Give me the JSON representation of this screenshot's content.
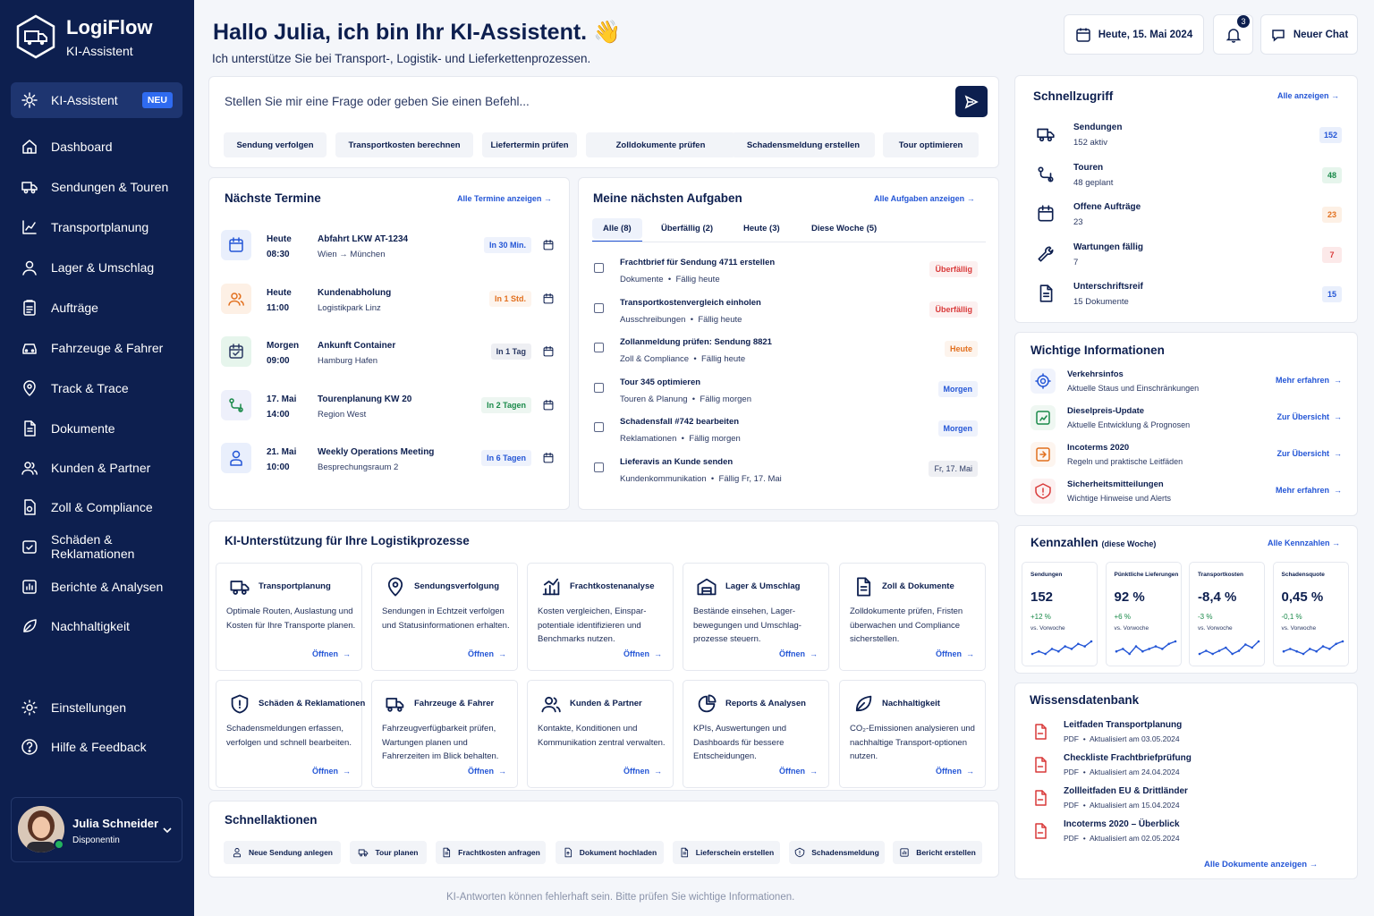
{
  "app": {
    "name": "LogiFlow",
    "subtitle": "KI-Assistent"
  },
  "nav": {
    "items": [
      {
        "label": "KI-Assistent",
        "badge": "NEU",
        "icon": "gear-spark-icon"
      },
      {
        "label": "Dashboard",
        "icon": "home-icon"
      },
      {
        "label": "Sendungen & Touren",
        "icon": "truck-route-icon"
      },
      {
        "label": "Transportplanung",
        "icon": "planning-icon"
      },
      {
        "label": "Lager & Umschlag",
        "icon": "warehouse-user-icon"
      },
      {
        "label": "Aufträge",
        "icon": "clipboard-icon"
      },
      {
        "label": "Fahrzeuge & Fahrer",
        "icon": "vehicle-icon"
      },
      {
        "label": "Track & Trace",
        "icon": "location-icon"
      },
      {
        "label": "Dokumente",
        "icon": "document-icon"
      },
      {
        "label": "Kunden & Partner",
        "icon": "users-icon"
      },
      {
        "label": "Zoll & Compliance",
        "icon": "customs-icon"
      },
      {
        "label": "Schäden & Reklamationen",
        "icon": "damage-icon"
      },
      {
        "label": "Berichte & Analysen",
        "icon": "report-icon"
      },
      {
        "label": "Nachhaltigkeit",
        "icon": "leaf-icon"
      }
    ],
    "settings": "Einstellungen",
    "help": "Hilfe & Feedback"
  },
  "user": {
    "name": "Julia Schneider",
    "role": "Disponentin"
  },
  "header": {
    "greeting": "Hallo Julia, ich bin Ihr KI-Assistent. 👋",
    "subtitle": "Ich unterstütze Sie bei Transport-, Logistik- und Lieferkettenprozessen.",
    "date": "Heute, 15. Mai 2024",
    "notifications": "3",
    "new_chat": "Neuer Chat"
  },
  "prompt": {
    "placeholder": "Stellen Sie mir eine Frage oder geben Sie einen Befehl...",
    "chips": [
      "Sendung verfolgen",
      "Transportkosten berechnen",
      "Liefertermin prüfen",
      "Zolldokumente prüfen",
      "Schadensmeldung erstellen",
      "Tour optimieren"
    ]
  },
  "termine": {
    "title": "Nächste Termine",
    "link": "Alle Termine anzeigen",
    "items": [
      {
        "day": "Heute",
        "time": "08:30",
        "title": "Abfahrt LKW AT-1234",
        "sub": "Wien → München",
        "pill": "In 30 Min.",
        "color": "#2456d6"
      },
      {
        "day": "Heute",
        "time": "11:00",
        "title": "Kundenabholung",
        "sub": "Logistikpark Linz",
        "pill": "In 1 Std.",
        "color": "#e2701f"
      },
      {
        "day": "Morgen",
        "time": "09:00",
        "title": "Ankunft Container",
        "sub": "Hamburg Hafen",
        "pill": "In 1 Tag",
        "color": "#2b3963"
      },
      {
        "day": "17. Mai",
        "time": "14:00",
        "title": "Tourenplanung KW 20",
        "sub": "Region West",
        "pill": "In 2 Tagen",
        "color": "#1a8a4a"
      },
      {
        "day": "21. Mai",
        "time": "10:00",
        "title": "Weekly Operations Meeting",
        "sub": "Besprechungsraum 2",
        "pill": "In 6 Tagen",
        "color": "#2456d6"
      }
    ]
  },
  "aufgaben": {
    "title": "Meine nächsten Aufgaben",
    "link": "Alle Aufgaben anzeigen",
    "tabs": [
      "Alle (8)",
      "Überfällig (2)",
      "Heute (3)",
      "Diese Woche (5)"
    ],
    "items": [
      {
        "title": "Frachtbrief für Sendung 4711 erstellen",
        "cat": "Dokumente",
        "due": "Fällig heute",
        "status": "Überfällig",
        "color": "#d93a3a"
      },
      {
        "title": "Transportkostenvergleich einholen",
        "cat": "Ausschreibungen",
        "due": "Fällig heute",
        "status": "Überfällig",
        "color": "#d93a3a"
      },
      {
        "title": "Zollanmeldung prüfen: Sendung 8821",
        "cat": "Zoll & Compliance",
        "due": "Fällig heute",
        "status": "Heute",
        "color": "#e2701f"
      },
      {
        "title": "Tour 345 optimieren",
        "cat": "Touren & Planung",
        "due": "Fällig morgen",
        "status": "Morgen",
        "color": "#2456d6"
      },
      {
        "title": "Schadensfall #742 bearbeiten",
        "cat": "Reklamationen",
        "due": "Fällig morgen",
        "status": "Morgen",
        "color": "#2456d6"
      },
      {
        "title": "Lieferavis an Kunde senden",
        "cat": "Kundenkommunikation",
        "due": "Fällig Fr, 17. Mai",
        "status": "Fr, 17. Mai",
        "color": "#2b3963"
      }
    ]
  },
  "ki": {
    "title": "KI-Unterstützung für Ihre Logistikprozesse",
    "open": "Öffnen",
    "cards": [
      {
        "title": "Transportplanung",
        "desc": "Optimale Routen, Auslastung und Kosten für Ihre Transporte planen.",
        "icon": "truck-icon"
      },
      {
        "title": "Sendungsverfolgung",
        "desc": "Sendungen in Echtzeit verfolgen und Statusinformationen erhalten.",
        "icon": "pin-icon"
      },
      {
        "title": "Frachtkostenanalyse",
        "desc": "Kosten vergleichen, Einspar-potentiale identifizieren und Benchmarks nutzen.",
        "icon": "chart-icon"
      },
      {
        "title": "Lager & Umschlag",
        "desc": "Bestände einsehen, Lager-bewegungen und Umschlag-prozesse steuern.",
        "icon": "warehouse-icon"
      },
      {
        "title": "Zoll & Dokumente",
        "desc": "Zolldokumente prüfen, Fristen überwachen und Compliance sicherstellen.",
        "icon": "doc-icon"
      },
      {
        "title": "Schäden & Reklamationen",
        "desc": "Schadensmeldungen erfassen, verfolgen und schnell bearbeiten.",
        "icon": "shield-icon"
      },
      {
        "title": "Fahrzeuge & Fahrer",
        "desc": "Fahrzeugverfügbarkeit prüfen, Wartungen planen und Fahrerzeiten im Blick behalten.",
        "icon": "vehicle-doc-icon"
      },
      {
        "title": "Kunden & Partner",
        "desc": "Kontakte, Konditionen und Kommunikation zentral verwalten.",
        "icon": "users-icon"
      },
      {
        "title": "Reports & Analysen",
        "desc": "KPIs, Auswertungen und Dashboards für bessere Entscheidungen.",
        "icon": "pie-icon"
      },
      {
        "title": "Nachhaltigkeit",
        "desc": "CO₂-Emissionen analysieren und nachhaltige Transport-optionen nutzen.",
        "icon": "leaf-icon"
      }
    ]
  },
  "schnellaktionen": {
    "title": "Schnellaktionen",
    "items": [
      "Neue Sendung anlegen",
      "Tour planen",
      "Frachtkosten anfragen",
      "Dokument hochladen",
      "Lieferschein erstellen",
      "Schadensmeldung",
      "Bericht erstellen"
    ]
  },
  "schnellzugriff": {
    "title": "Schnellzugriff",
    "link": "Alle anzeigen",
    "items": [
      {
        "title": "Sendungen",
        "sub": "152 aktiv",
        "count": "152",
        "color": "#2456d6",
        "bg": "#e9effc"
      },
      {
        "title": "Touren",
        "sub": "48 geplant",
        "count": "48",
        "color": "#1a8a4a",
        "bg": "#e6f5ec"
      },
      {
        "title": "Offene Aufträge",
        "sub": "23",
        "count": "23",
        "color": "#e2701f",
        "bg": "#fdf0e5"
      },
      {
        "title": "Wartungen fällig",
        "sub": "7",
        "count": "7",
        "color": "#d93a3a",
        "bg": "#fce9e9"
      },
      {
        "title": "Unterschriftsreif",
        "sub": "15 Dokumente",
        "count": "15",
        "color": "#2456d6",
        "bg": "#e9effc"
      }
    ]
  },
  "infos": {
    "title": "Wichtige Informationen",
    "items": [
      {
        "title": "Verkehrsinfos",
        "sub": "Aktuelle Staus und Einschränkungen",
        "link": "Mehr erfahren",
        "color": "#2456d6"
      },
      {
        "title": "Dieselpreis-Update",
        "sub": "Aktuelle Entwicklung & Prognosen",
        "link": "Zur Übersicht",
        "color": "#1a8a4a"
      },
      {
        "title": "Incoterms 2020",
        "sub": "Regeln und praktische Leitfäden",
        "link": "Zur Übersicht",
        "color": "#e2701f"
      },
      {
        "title": "Sicherheitsmitteilungen",
        "sub": "Wichtige Hinweise und Alerts",
        "link": "Mehr erfahren",
        "color": "#d93a3a"
      }
    ]
  },
  "kennzahlen": {
    "title": "Kennzahlen",
    "period": "(diese Woche)",
    "link": "Alle Kennzahlen",
    "vs": "vs. Vorwoche",
    "items": [
      {
        "label": "Sendungen",
        "value": "152",
        "change": "+12 %",
        "trend": [
          4,
          5,
          4,
          6,
          5,
          7,
          6,
          8,
          7,
          9
        ]
      },
      {
        "label": "Pünktliche Lieferungen",
        "value": "92 %",
        "change": "+6 %",
        "trend": [
          5,
          6,
          4,
          7,
          5,
          6,
          7,
          6,
          8,
          9
        ]
      },
      {
        "label": "Transportkosten",
        "value": "-8,4 %",
        "change": "-3 %",
        "trend": [
          5,
          6,
          5,
          6,
          7,
          5,
          6,
          8,
          7,
          9
        ]
      },
      {
        "label": "Schadensquote",
        "value": "0,45 %",
        "change": "-0,1 %",
        "trend": [
          5,
          6,
          5,
          4,
          6,
          5,
          7,
          6,
          8,
          9
        ]
      }
    ]
  },
  "wissen": {
    "title": "Wissensdatenbank",
    "link": "Alle Dokumente anzeigen",
    "items": [
      {
        "title": "Leitfaden Transportplanung",
        "type": "PDF",
        "updated": "Aktualisiert am 03.05.2024"
      },
      {
        "title": "Checkliste Frachtbriefprüfung",
        "type": "PDF",
        "updated": "Aktualisiert am 24.04.2024"
      },
      {
        "title": "Zollleitfaden EU & Drittländer",
        "type": "PDF",
        "updated": "Aktualisiert am 15.04.2024"
      },
      {
        "title": "Incoterms 2020 – Überblick",
        "type": "PDF",
        "updated": "Aktualisiert am 02.05.2024"
      }
    ]
  },
  "footer": "KI-Antworten können fehlerhaft sein. Bitte prüfen Sie wichtige Informationen."
}
